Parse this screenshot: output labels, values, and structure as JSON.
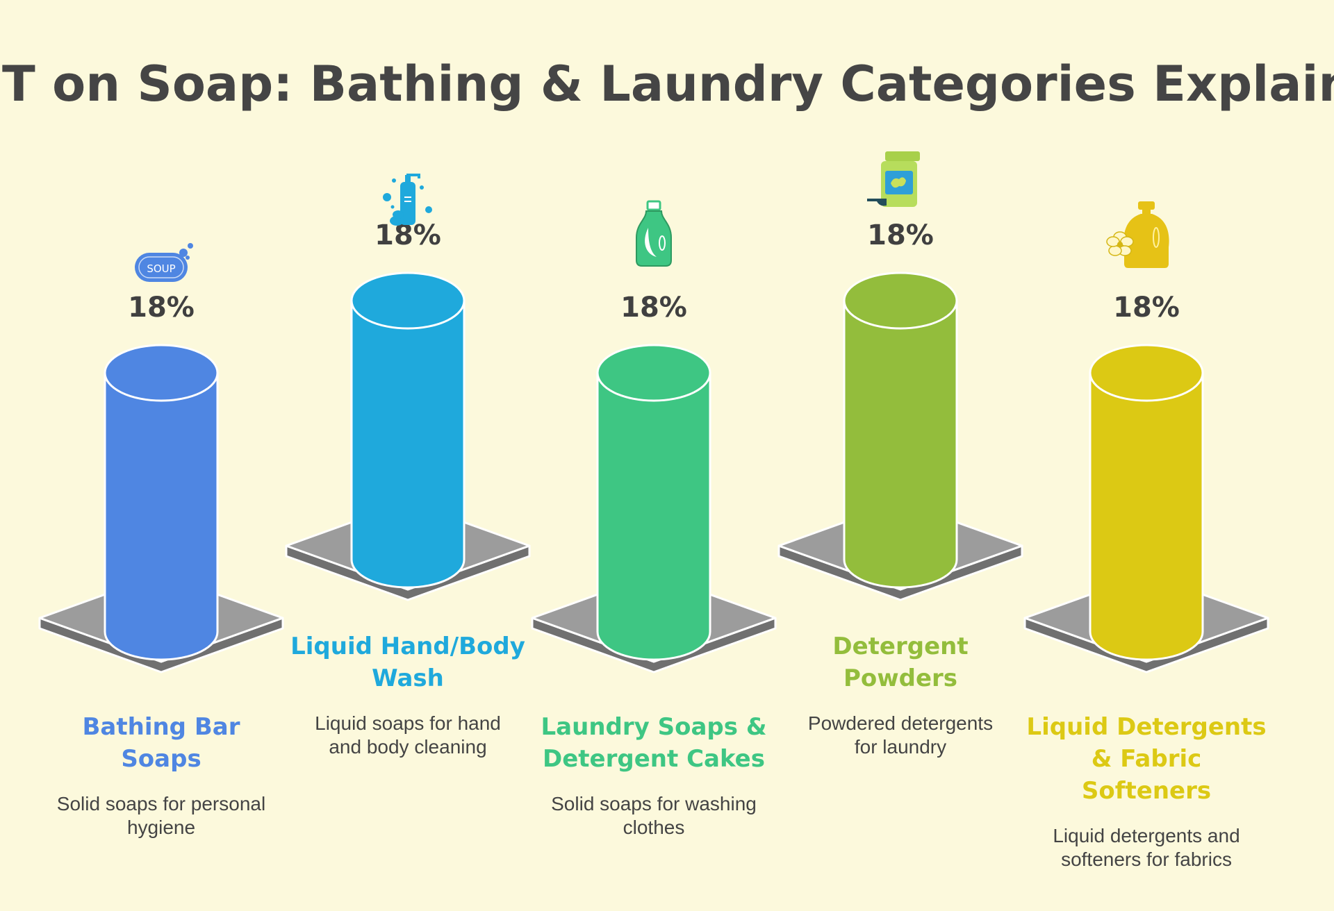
{
  "title": "GST on Soap: Bathing & Laundry Categories Explained",
  "chart_data": {
    "type": "bar",
    "title": "GST on Soap: Bathing & Laundry Categories Explained",
    "categories": [
      "Bathing Bar Soaps",
      "Liquid Hand/Body Wash",
      "Laundry Soaps & Detergent Cakes",
      "Detergent Powders",
      "Liquid Detergents & Fabric Softeners"
    ],
    "values": [
      18,
      18,
      18,
      18,
      18
    ],
    "unit": "%",
    "value_labels": [
      "18%",
      "18%",
      "18%",
      "18%",
      "18%"
    ]
  },
  "items": [
    {
      "name_lines": [
        "Bathing Bar",
        "Soaps"
      ],
      "desc_lines": [
        "Solid soaps for personal",
        "hygiene"
      ],
      "rate_label": "18%",
      "color": "#4f86e2",
      "icon": "soap-bar-icon",
      "icon_text": "SOUP"
    },
    {
      "name_lines": [
        "Liquid Hand/Body",
        "Wash"
      ],
      "desc_lines": [
        "Liquid soaps for hand",
        "and body cleaning"
      ],
      "rate_label": "18%",
      "color": "#1fa9dc",
      "icon": "hand-wash-bottle-icon"
    },
    {
      "name_lines": [
        "Laundry Soaps &",
        "Detergent Cakes"
      ],
      "desc_lines": [
        "Solid soaps for washing",
        "clothes"
      ],
      "rate_label": "18%",
      "color": "#3ec683",
      "icon": "laundry-bottle-icon"
    },
    {
      "name_lines": [
        "Detergent",
        "Powders"
      ],
      "desc_lines": [
        "Powdered detergents",
        "for laundry"
      ],
      "rate_label": "18%",
      "color": "#93bd3c",
      "icon": "detergent-powder-icon"
    },
    {
      "name_lines": [
        "Liquid Detergents",
        "& Fabric",
        "Softeners"
      ],
      "desc_lines": [
        "Liquid detergents and",
        "softeners for fabrics"
      ],
      "rate_label": "18%",
      "color": "#dcc914",
      "icon": "fabric-softener-icon"
    }
  ]
}
